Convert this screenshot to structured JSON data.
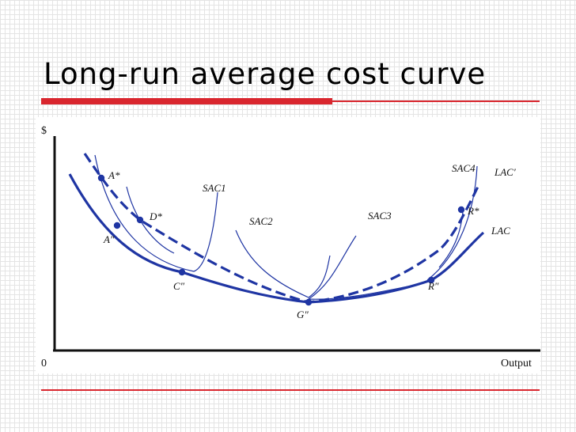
{
  "slide": {
    "title": "Long-run average cost curve"
  },
  "diagram": {
    "y_axis_label": "$",
    "origin_label": "0",
    "x_axis_label": "Output",
    "curves": {
      "lac": "LAC",
      "lac_prime": "LAC′"
    },
    "sac": {
      "sac1": "SAC1",
      "sac2": "SAC2",
      "sac3": "SAC3",
      "sac4": "SAC4"
    },
    "points": {
      "a_star": "A*",
      "d_star": "D*",
      "a_pp": "A″",
      "c_pp": "C″",
      "g_pp": "G″",
      "r_pp": "R″",
      "r_star": "R*"
    },
    "colors": {
      "curve": "#1f35a3",
      "rule": "#d9262e"
    }
  }
}
